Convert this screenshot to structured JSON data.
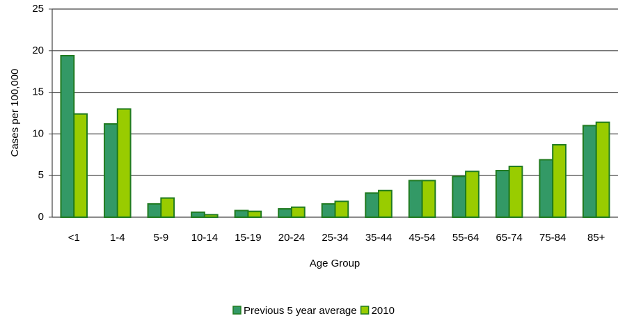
{
  "chart_data": {
    "type": "bar",
    "x_label": "Age Group",
    "y_label": "Cases per 100,000",
    "categories": [
      "<1",
      "1-4",
      "5-9",
      "10-14",
      "15-19",
      "20-24",
      "25-34",
      "35-44",
      "45-54",
      "55-64",
      "65-74",
      "75-84",
      "85+"
    ],
    "series": [
      {
        "name": "Previous 5 year average",
        "color": "#339966",
        "values": [
          19.4,
          11.2,
          1.6,
          0.6,
          0.8,
          1.0,
          1.6,
          2.9,
          4.4,
          4.9,
          5.6,
          6.9,
          11.0
        ]
      },
      {
        "name": "2010",
        "color": "#99cc00",
        "values": [
          12.4,
          13.0,
          2.3,
          0.3,
          0.7,
          1.2,
          1.9,
          3.2,
          4.4,
          5.5,
          6.1,
          8.7,
          11.4
        ]
      }
    ],
    "ylim": [
      0,
      25
    ],
    "yticks": [
      0,
      5,
      10,
      15,
      20,
      25
    ],
    "grid": true,
    "legend": "bottom"
  }
}
